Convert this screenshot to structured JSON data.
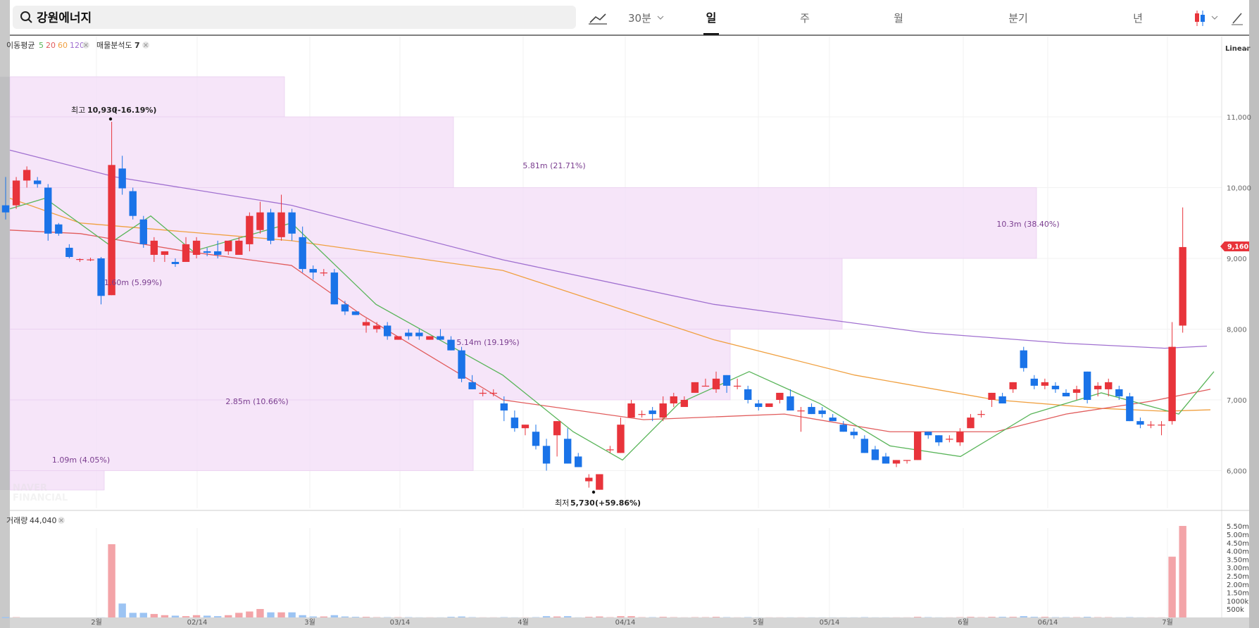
{
  "search": {
    "value": "강원에너지"
  },
  "toolbar": {
    "interval": "30분",
    "tabs": [
      {
        "label": "일",
        "active": true
      },
      {
        "label": "주",
        "active": false
      },
      {
        "label": "월",
        "active": false
      },
      {
        "label": "분기",
        "active": false
      },
      {
        "label": "년",
        "active": false
      }
    ]
  },
  "indicators": {
    "ma_label": "이동평균",
    "ma_periods": [
      {
        "label": "5",
        "color": "#5ab55a"
      },
      {
        "label": "20",
        "color": "#e15c5c"
      },
      {
        "label": "60",
        "color": "#f0a040"
      },
      {
        "label": "120",
        "color": "#a070d0"
      }
    ],
    "vpa_label": "매물분석도",
    "vpa_value": "7",
    "volume_label": "거래량",
    "volume_value": "44,040"
  },
  "scale_mode": "Linear",
  "watermark": [
    "NAVER",
    "FINANCIAL"
  ],
  "annotations": {
    "high": {
      "label": "최고",
      "value": "10,930",
      "pct": "(-16.19%)"
    },
    "low": {
      "label": "최저",
      "value": "5,730",
      "pct": "(+59.86%)"
    },
    "last_price": "9,160"
  },
  "colors": {
    "up": "#e8343b",
    "down": "#1a73e8",
    "ma5": "#5ab55a",
    "ma20": "#e15c5c",
    "ma60": "#f0a040",
    "ma120": "#a070d0",
    "vpa_fill": "#f3dcf7"
  },
  "chart_data": {
    "type": "candlestick",
    "y_ticks": [
      "11,000",
      "10,000",
      "9,000",
      "8,000",
      "7,000",
      "6,000"
    ],
    "ylim": [
      5600,
      11600
    ],
    "x_ticks": [
      "2월",
      "02/14",
      "3월",
      "03/14",
      "4월",
      "04/14",
      "5월",
      "05/14",
      "6월",
      "06/14",
      "7월"
    ],
    "volume_ticks": [
      "5.50m",
      "5.00m",
      "4.50m",
      "4.00m",
      "3.50m",
      "3.00m",
      "2.50m",
      "2.00m",
      "1.50m",
      "1000k",
      "500k"
    ],
    "volume_profile": [
      {
        "low": 11000,
        "high": 11800,
        "volume": "",
        "label": ""
      },
      {
        "low": 10000,
        "high": 11000,
        "volume": "5.81m",
        "label": "5.81m (21.71%)"
      },
      {
        "low": 9000,
        "high": 10000,
        "volume": "10.3m",
        "label": "10.3m (38.40%)"
      },
      {
        "low": 8000,
        "high": 9000,
        "volume": "1.60m",
        "label": "1.60m (5.99%)"
      },
      {
        "low": 7000,
        "high": 8000,
        "volume": "5.14m",
        "label": "5.14m (19.19%)"
      },
      {
        "low": 6000,
        "high": 7000,
        "volume": "2.85m",
        "label": "2.85m (10.66%)"
      },
      {
        "low": 5200,
        "high": 6000,
        "volume": "1.09m",
        "label": "1.09m (4.05%)"
      }
    ],
    "candles": [
      [
        9750,
        10150,
        9550,
        9650
      ],
      [
        9750,
        10150,
        9700,
        10100
      ],
      [
        10100,
        10300,
        10000,
        10250
      ],
      [
        10100,
        10150,
        10000,
        10050
      ],
      [
        10000,
        10050,
        9250,
        9350
      ],
      [
        9480,
        9500,
        9320,
        9350
      ],
      [
        9150,
        9200,
        9000,
        9020
      ],
      [
        8980,
        9000,
        8950,
        8990
      ],
      [
        8980,
        9010,
        8960,
        8985
      ],
      [
        9000,
        9020,
        8350,
        8470
      ],
      [
        8480,
        10930,
        8480,
        10320
      ],
      [
        10270,
        10450,
        9900,
        9990
      ],
      [
        9950,
        10000,
        9550,
        9600
      ],
      [
        9550,
        9600,
        9150,
        9200
      ],
      [
        9050,
        9300,
        8950,
        9250
      ],
      [
        9050,
        9100,
        8950,
        9100
      ],
      [
        8950,
        9000,
        8880,
        8920
      ],
      [
        8950,
        9300,
        8950,
        9200
      ],
      [
        9050,
        9300,
        9000,
        9250
      ],
      [
        9100,
        9150,
        9030,
        9080
      ],
      [
        9100,
        9250,
        9000,
        9050
      ],
      [
        9100,
        9250,
        9050,
        9250
      ],
      [
        9050,
        9300,
        9050,
        9250
      ],
      [
        9200,
        9650,
        9100,
        9600
      ],
      [
        9400,
        9800,
        9350,
        9650
      ],
      [
        9650,
        9700,
        9200,
        9250
      ],
      [
        9300,
        9900,
        9250,
        9650
      ],
      [
        9650,
        9700,
        9250,
        9350
      ],
      [
        9300,
        9450,
        8800,
        8850
      ],
      [
        8850,
        8900,
        8700,
        8800
      ],
      [
        8800,
        8850,
        8750,
        8800
      ],
      [
        8800,
        8850,
        8350,
        8350
      ],
      [
        8350,
        8400,
        8200,
        8250
      ],
      [
        8250,
        8250,
        8200,
        8200
      ],
      [
        8050,
        8150,
        7950,
        8100
      ],
      [
        8000,
        8100,
        7950,
        8050
      ],
      [
        8050,
        8100,
        7850,
        7900
      ],
      [
        7850,
        7900,
        7850,
        7900
      ],
      [
        7950,
        8000,
        7850,
        7900
      ],
      [
        7950,
        8000,
        7850,
        7900
      ],
      [
        7850,
        7900,
        7850,
        7900
      ],
      [
        7900,
        8000,
        7850,
        7850
      ],
      [
        7850,
        7900,
        7700,
        7700
      ],
      [
        7700,
        7750,
        7250,
        7300
      ],
      [
        7250,
        7350,
        7150,
        7150
      ],
      [
        7100,
        7150,
        7050,
        7100
      ],
      [
        7100,
        7150,
        7050,
        7100
      ],
      [
        6950,
        7050,
        6700,
        6850
      ],
      [
        6750,
        6850,
        6550,
        6600
      ],
      [
        6600,
        6650,
        6500,
        6650
      ],
      [
        6550,
        6650,
        6300,
        6350
      ],
      [
        6350,
        6450,
        6000,
        6100
      ],
      [
        6500,
        6700,
        6200,
        6700
      ],
      [
        6450,
        6600,
        6100,
        6100
      ],
      [
        6200,
        6250,
        6050,
        6050
      ],
      [
        5850,
        5950,
        5760,
        5900
      ],
      [
        5730,
        5950,
        5730,
        5950
      ],
      [
        6300,
        6350,
        6250,
        6300
      ],
      [
        6250,
        6750,
        6250,
        6650
      ],
      [
        6750,
        7000,
        6800,
        6950
      ],
      [
        6800,
        6850,
        6750,
        6800
      ],
      [
        6850,
        6900,
        6700,
        6800
      ],
      [
        6750,
        7050,
        6700,
        6950
      ],
      [
        6950,
        7100,
        6900,
        7050
      ],
      [
        6900,
        7050,
        6950,
        7000
      ],
      [
        7100,
        7250,
        7100,
        7250
      ],
      [
        7200,
        7300,
        7200,
        7200
      ],
      [
        7150,
        7400,
        7100,
        7300
      ],
      [
        7350,
        7350,
        7100,
        7200
      ],
      [
        7200,
        7300,
        7150,
        7200
      ],
      [
        7150,
        7200,
        6950,
        7000
      ],
      [
        6950,
        7000,
        6850,
        6900
      ],
      [
        6900,
        6950,
        6900,
        6950
      ],
      [
        7000,
        7100,
        6950,
        7100
      ],
      [
        7050,
        7150,
        6850,
        6850
      ],
      [
        6850,
        6900,
        6550,
        6850
      ],
      [
        6900,
        6950,
        6800,
        6800
      ],
      [
        6850,
        6900,
        6750,
        6800
      ],
      [
        6750,
        6800,
        6700,
        6700
      ],
      [
        6650,
        6700,
        6550,
        6550
      ],
      [
        6550,
        6600,
        6450,
        6500
      ],
      [
        6450,
        6500,
        6250,
        6250
      ],
      [
        6300,
        6350,
        6150,
        6150
      ],
      [
        6200,
        6250,
        6100,
        6100
      ],
      [
        6100,
        6150,
        6050,
        6150
      ],
      [
        6150,
        6150,
        6100,
        6150
      ],
      [
        6150,
        6550,
        6150,
        6550
      ],
      [
        6550,
        6550,
        6450,
        6500
      ],
      [
        6500,
        6500,
        6350,
        6400
      ],
      [
        6450,
        6500,
        6400,
        6450
      ],
      [
        6400,
        6600,
        6350,
        6550
      ],
      [
        6600,
        6800,
        6600,
        6750
      ],
      [
        6800,
        6850,
        6750,
        6800
      ],
      [
        7000,
        7100,
        6900,
        7100
      ],
      [
        7050,
        7100,
        6950,
        6950
      ],
      [
        7150,
        7250,
        7100,
        7250
      ],
      [
        7700,
        7750,
        7400,
        7450
      ],
      [
        7300,
        7350,
        7150,
        7200
      ],
      [
        7200,
        7300,
        7150,
        7250
      ],
      [
        7200,
        7250,
        7100,
        7150
      ],
      [
        7100,
        7150,
        7050,
        7050
      ],
      [
        7100,
        7200,
        7000,
        7150
      ],
      [
        7400,
        7400,
        6950,
        7000
      ],
      [
        7150,
        7250,
        7050,
        7200
      ],
      [
        7150,
        7300,
        7050,
        7250
      ],
      [
        7150,
        7200,
        7000,
        7050
      ],
      [
        7050,
        7100,
        6700,
        6700
      ],
      [
        6700,
        6750,
        6600,
        6650
      ],
      [
        6650,
        6700,
        6600,
        6650
      ],
      [
        6650,
        6700,
        6500,
        6650
      ],
      [
        6700,
        8100,
        6650,
        7750
      ],
      [
        8050,
        9720,
        7950,
        9160
      ]
    ],
    "volumes": [
      0.06,
      0.06,
      0.04,
      0.04,
      0.03,
      0.02,
      0.02,
      0.02,
      0.02,
      0.05,
      4.45,
      0.88,
      0.32,
      0.32,
      0.25,
      0.18,
      0.15,
      0.12,
      0.18,
      0.15,
      0.12,
      0.18,
      0.32,
      0.4,
      0.55,
      0.35,
      0.35,
      0.35,
      0.18,
      0.1,
      0.1,
      0.18,
      0.1,
      0.08,
      0.08,
      0.06,
      0.06,
      0.06,
      0.06,
      0.05,
      0.05,
      0.05,
      0.08,
      0.1,
      0.06,
      0.05,
      0.05,
      0.06,
      0.05,
      0.05,
      0.06,
      0.12,
      0.1,
      0.12,
      0.05,
      0.08,
      0.1,
      0.06,
      0.12,
      0.12,
      0.06,
      0.06,
      0.08,
      0.06,
      0.05,
      0.06,
      0.06,
      0.08,
      0.06,
      0.05,
      0.06,
      0.05,
      0.05,
      0.05,
      0.05,
      0.05,
      0.05,
      0.05,
      0.05,
      0.05,
      0.05,
      0.06,
      0.05,
      0.05,
      0.05,
      0.05,
      0.08,
      0.06,
      0.05,
      0.05,
      0.06,
      0.08,
      0.06,
      0.08,
      0.08,
      0.08,
      0.12,
      0.08,
      0.08,
      0.06,
      0.06,
      0.06,
      0.08,
      0.06,
      0.06,
      0.05,
      0.06,
      0.05,
      0.05,
      0.05,
      3.7,
      5.55
    ],
    "ma120": [
      [
        0,
        10530
      ],
      [
        150,
        10150
      ],
      [
        400,
        9750
      ],
      [
        700,
        8980
      ],
      [
        1000,
        8350
      ],
      [
        1300,
        7950
      ],
      [
        1500,
        7800
      ],
      [
        1640,
        7730
      ],
      [
        1700,
        7760
      ]
    ],
    "ma60": [
      [
        0,
        9850
      ],
      [
        100,
        9500
      ],
      [
        400,
        9250
      ],
      [
        700,
        8830
      ],
      [
        1000,
        7850
      ],
      [
        1200,
        7350
      ],
      [
        1400,
        7000
      ],
      [
        1550,
        6880
      ],
      [
        1640,
        6840
      ],
      [
        1705,
        6860
      ]
    ],
    "ma20": [
      [
        0,
        9400
      ],
      [
        100,
        9350
      ],
      [
        250,
        9100
      ],
      [
        400,
        8900
      ],
      [
        500,
        8200
      ],
      [
        700,
        7000
      ],
      [
        900,
        6720
      ],
      [
        1100,
        6800
      ],
      [
        1250,
        6550
      ],
      [
        1400,
        6550
      ],
      [
        1500,
        6800
      ],
      [
        1620,
        6980
      ],
      [
        1705,
        7150
      ]
    ],
    "ma5": [
      [
        0,
        9700
      ],
      [
        50,
        9850
      ],
      [
        140,
        9200
      ],
      [
        200,
        9600
      ],
      [
        260,
        9100
      ],
      [
        400,
        9500
      ],
      [
        520,
        8350
      ],
      [
        700,
        7350
      ],
      [
        800,
        6550
      ],
      [
        870,
        6150
      ],
      [
        950,
        6950
      ],
      [
        1050,
        7400
      ],
      [
        1150,
        6950
      ],
      [
        1250,
        6350
      ],
      [
        1350,
        6200
      ],
      [
        1450,
        6800
      ],
      [
        1550,
        7100
      ],
      [
        1660,
        6800
      ],
      [
        1710,
        7400
      ]
    ]
  }
}
